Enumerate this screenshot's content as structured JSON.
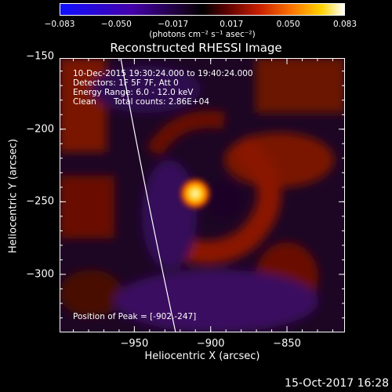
{
  "colorbar": {
    "ticks": [
      "-0.083",
      "-0.050",
      "-0.017",
      "0.017",
      "0.050",
      "0.083"
    ],
    "units": "(photons cm⁻² s⁻¹ asec⁻²)",
    "range": [
      -0.083,
      0.083
    ]
  },
  "chart_data": {
    "type": "heatmap",
    "title": "Reconstructed RHESSI Image",
    "xlabel": "Heliocentric X (arcsec)",
    "ylabel": "Heliocentric Y (arcsec)",
    "xlim": [
      -999,
      -812
    ],
    "ylim": [
      -340,
      -151
    ],
    "xticks": [
      {
        "value": -950,
        "label": "-950"
      },
      {
        "value": -900,
        "label": "-900"
      },
      {
        "value": -850,
        "label": "-850"
      }
    ],
    "yticks": [
      {
        "value": -150,
        "label": "-150"
      },
      {
        "value": -200,
        "label": "-200"
      },
      {
        "value": -250,
        "label": "-250"
      },
      {
        "value": -300,
        "label": "-300"
      }
    ],
    "peak": {
      "x": -902,
      "y": -247
    },
    "annotations": {
      "time_range": "10-Dec-2015 19:30:24.000 to 19:40:24.000",
      "detectors": "Detectors: 1F 5F 7F, Att 0",
      "energy_range": "Energy Range: 6.0 - 12.0 keV",
      "method": "Clean",
      "total_counts": "Total counts: 2.86E+04",
      "peak_position": "Position of Peak = [-902,-247]"
    }
  },
  "timestamp": "15-Oct-2017 16:28"
}
